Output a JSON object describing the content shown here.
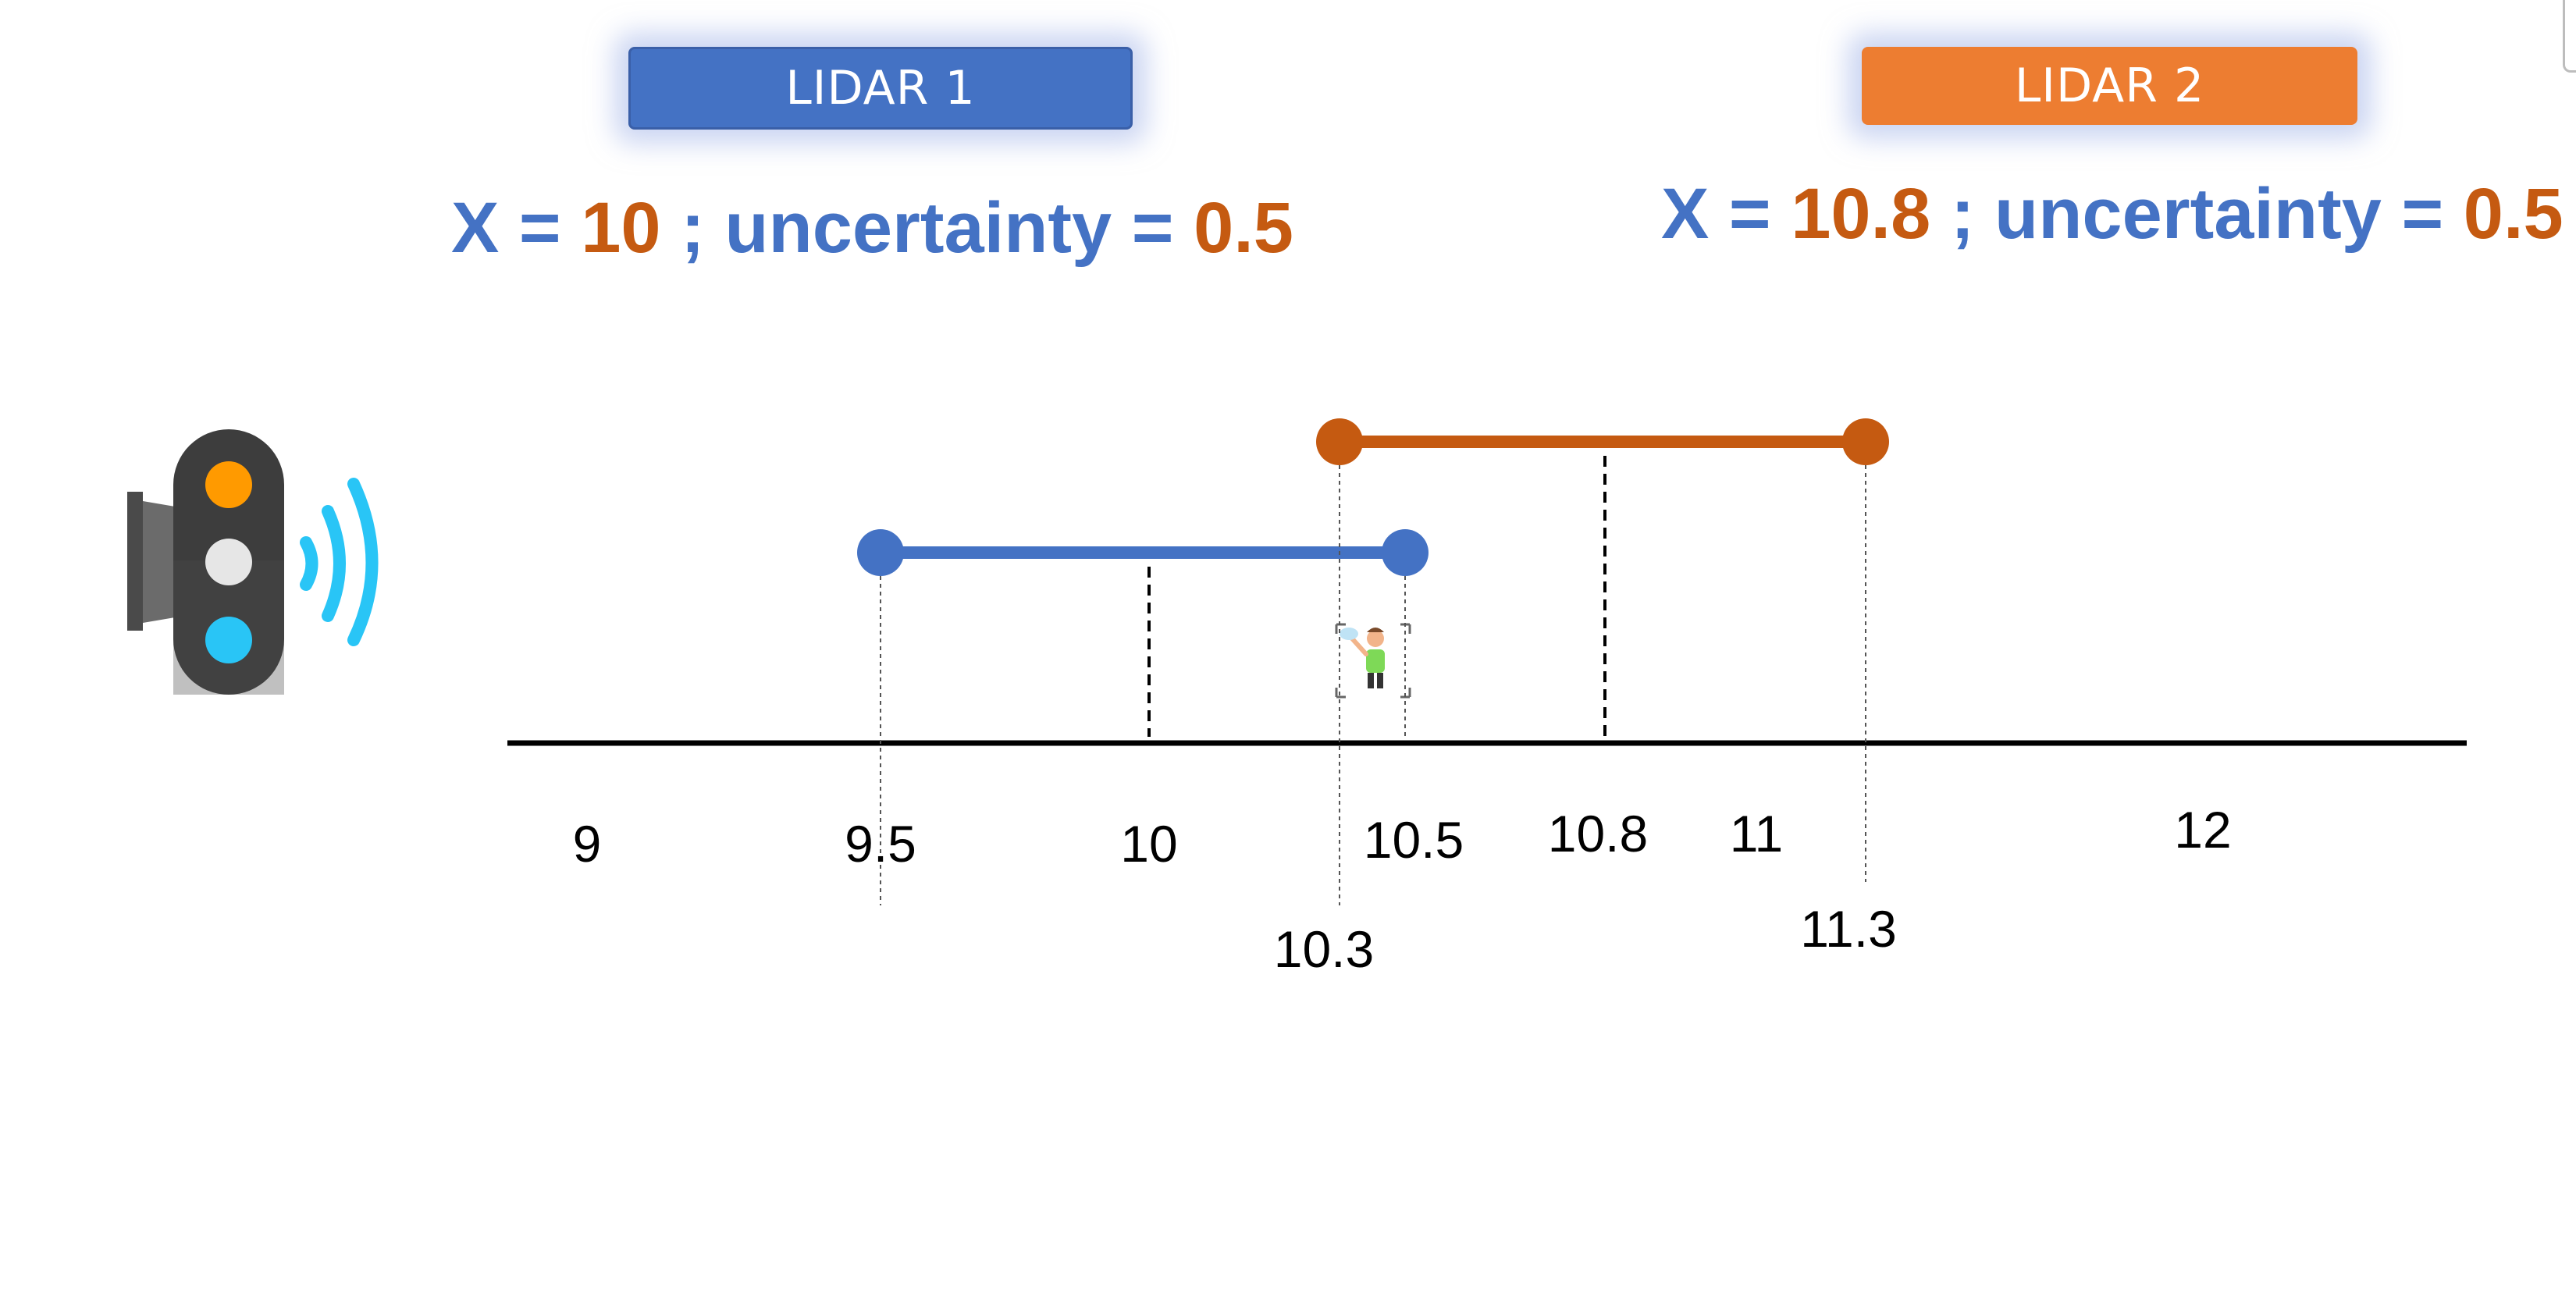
{
  "lidar1": {
    "label": "LIDAR 1",
    "x_prefix": "X = ",
    "x_value": "10",
    "separator": " ; uncertainty = ",
    "uncertainty_value": "0.5"
  },
  "lidar2": {
    "label": "LIDAR 2",
    "x_prefix": "X = ",
    "x_value": "10.8",
    "separator": " ; uncertainty = ",
    "uncertainty_value": "0.5"
  },
  "axis": {
    "ticks_above": [
      "9",
      "9.5",
      "10",
      "10.5",
      "10.8",
      "11",
      "12"
    ],
    "ticks_below": [
      "10.3",
      "11.3"
    ]
  },
  "intervals": [
    {
      "name": "lidar1",
      "low": 9.5,
      "center": 10,
      "high": 10.5,
      "color": "#4472c4"
    },
    {
      "name": "lidar2",
      "low": 10.3,
      "center": 10.8,
      "high": 11.3,
      "color": "#c55a11"
    }
  ],
  "icons": {
    "sensor": "traffic-light-sensor-icon",
    "person": "waving-person-icon"
  },
  "colors": {
    "blue": "#4472c4",
    "orange": "#ed7d31",
    "dark_orange": "#c55a11",
    "signal_waves": "#29c5f6"
  }
}
